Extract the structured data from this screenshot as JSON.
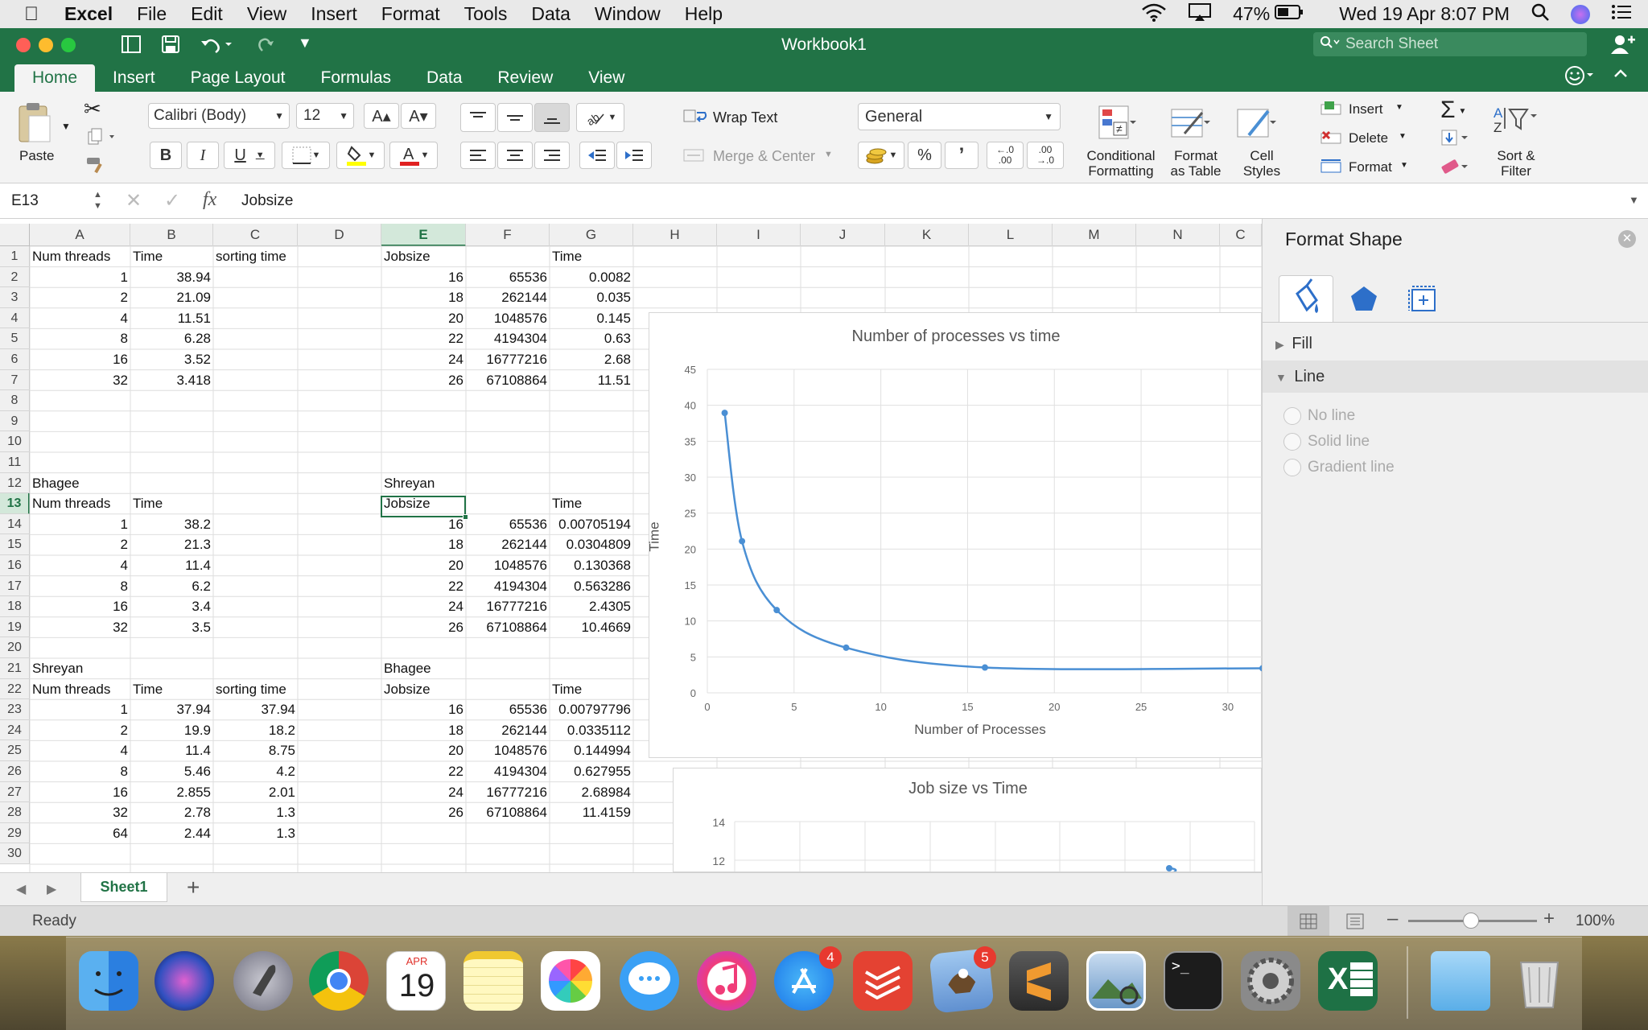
{
  "menubar": {
    "app": "Excel",
    "items": [
      "File",
      "Edit",
      "View",
      "Insert",
      "Format",
      "Tools",
      "Data",
      "Window",
      "Help"
    ],
    "battery": "47%",
    "datetime": "Wed 19 Apr  8:07 PM"
  },
  "window": {
    "title": "Workbook1",
    "search_placeholder": "Search Sheet"
  },
  "ribbon_tabs": [
    "Home",
    "Insert",
    "Page Layout",
    "Formulas",
    "Data",
    "Review",
    "View"
  ],
  "ribbon": {
    "paste": "Paste",
    "font_name": "Calibri (Body)",
    "font_size": "12",
    "bold": "B",
    "italic": "I",
    "underline": "U",
    "grow": "A▴",
    "shrink": "A▾",
    "wrap_text": "Wrap Text",
    "merge_center": "Merge & Center",
    "number_format": "General",
    "percent": "%",
    "comma": "’",
    "inc_decimal": "←.0 .00",
    "dec_decimal": ".00 →.0",
    "cond_format_1": "Conditional",
    "cond_format_2": "Formatting",
    "format_table_1": "Format",
    "format_table_2": "as Table",
    "cell_styles_1": "Cell",
    "cell_styles_2": "Styles",
    "insert": "Insert",
    "delete": "Delete",
    "format": "Format",
    "sort_1": "Sort &",
    "sort_2": "Filter"
  },
  "formula_bar": {
    "name_box": "E13",
    "fx": "fx",
    "value": "Jobsize"
  },
  "columns": [
    "A",
    "B",
    "C",
    "D",
    "E",
    "F",
    "G",
    "H",
    "I",
    "J",
    "K",
    "L",
    "M",
    "N",
    "C"
  ],
  "rows": [
    "1",
    "2",
    "3",
    "4",
    "5",
    "6",
    "7",
    "8",
    "9",
    "10",
    "11",
    "12",
    "13",
    "14",
    "15",
    "16",
    "17",
    "18",
    "19",
    "20",
    "21",
    "22",
    "23",
    "24",
    "25",
    "26",
    "27",
    "28",
    "29",
    "30"
  ],
  "cells": {
    "A1": "Num threads",
    "B1": "Time",
    "C1": "sorting time",
    "E1": "Jobsize",
    "G1": "Time",
    "A2": "1",
    "B2": "38.94",
    "E2": "16",
    "F2": "65536",
    "G2": "0.0082",
    "A3": "2",
    "B3": "21.09",
    "E3": "18",
    "F3": "262144",
    "G3": "0.035",
    "A4": "4",
    "B4": "11.51",
    "E4": "20",
    "F4": "1048576",
    "G4": "0.145",
    "A5": "8",
    "B5": "6.28",
    "E5": "22",
    "F5": "4194304",
    "G5": "0.63",
    "A6": "16",
    "B6": "3.52",
    "E6": "24",
    "F6": "16777216",
    "G6": "2.68",
    "A7": "32",
    "B7": "3.418",
    "E7": "26",
    "F7": "67108864",
    "G7": "11.51",
    "A12": "Bhagee",
    "E12": "Shreyan",
    "A13": "Num threads",
    "B13": "Time",
    "E13": "Jobsize",
    "G13": "Time",
    "A14": "1",
    "B14": "38.2",
    "E14": "16",
    "F14": "65536",
    "G14": "0.00705194",
    "A15": "2",
    "B15": "21.3",
    "E15": "18",
    "F15": "262144",
    "G15": "0.0304809",
    "A16": "4",
    "B16": "11.4",
    "E16": "20",
    "F16": "1048576",
    "G16": "0.130368",
    "A17": "8",
    "B17": "6.2",
    "E17": "22",
    "F17": "4194304",
    "G17": "0.563286",
    "A18": "16",
    "B18": "3.4",
    "E18": "24",
    "F18": "16777216",
    "G18": "2.4305",
    "A19": "32",
    "B19": "3.5",
    "E19": "26",
    "F19": "67108864",
    "G19": "10.4669",
    "A21": "Shreyan",
    "E21": "Bhagee",
    "A22": "Num threads",
    "B22": "Time",
    "C22": "sorting time",
    "E22": "Jobsize",
    "G22": "Time",
    "A23": "1",
    "B23": "37.94",
    "C23": "37.94",
    "E23": "16",
    "F23": "65536",
    "G23": "0.00797796",
    "A24": "2",
    "B24": "19.9",
    "C24": "18.2",
    "E24": "18",
    "F24": "262144",
    "G24": "0.0335112",
    "A25": "4",
    "B25": "11.4",
    "C25": "8.75",
    "E25": "20",
    "F25": "1048576",
    "G25": "0.144994",
    "A26": "8",
    "B26": "5.46",
    "C26": "4.2",
    "E26": "22",
    "F26": "4194304",
    "G26": "0.627955",
    "A27": "16",
    "B27": "2.855",
    "C27": "2.01",
    "E27": "24",
    "F27": "16777216",
    "G27": "2.68984",
    "A28": "32",
    "B28": "2.78",
    "C28": "1.3",
    "E28": "26",
    "F28": "67108864",
    "G28": "11.4159",
    "A29": "64",
    "B29": "2.44",
    "C29": "1.3"
  },
  "chart_data": [
    {
      "type": "scatter",
      "title": "Number of processes vs time",
      "xlabel": "Number of Processes",
      "ylabel": "Time",
      "x": [
        1,
        2,
        4,
        8,
        16,
        32
      ],
      "y": [
        38.94,
        21.09,
        11.51,
        6.28,
        3.52,
        3.418
      ],
      "xlim": [
        0,
        32
      ],
      "ylim": [
        0,
        45
      ],
      "xticks": [
        0,
        5,
        10,
        15,
        20,
        25,
        30
      ],
      "yticks": [
        0,
        5,
        10,
        15,
        20,
        25,
        30,
        35,
        40,
        45
      ],
      "grid": true,
      "color": "#4a8fd4"
    },
    {
      "type": "scatter",
      "title": "Job size vs Time",
      "yticks_visible": [
        12,
        14
      ]
    }
  ],
  "format_panel": {
    "title": "Format Shape",
    "fill": "Fill",
    "line": "Line",
    "options": [
      "No line",
      "Solid line",
      "Gradient line"
    ]
  },
  "sheet_tabs": {
    "active": "Sheet1",
    "add": "+"
  },
  "status": {
    "ready": "Ready",
    "zoom": "100%"
  },
  "dock": {
    "calendar_month": "APR",
    "calendar_day": "19",
    "appstore_badge": "4",
    "mail_badge": "5"
  }
}
